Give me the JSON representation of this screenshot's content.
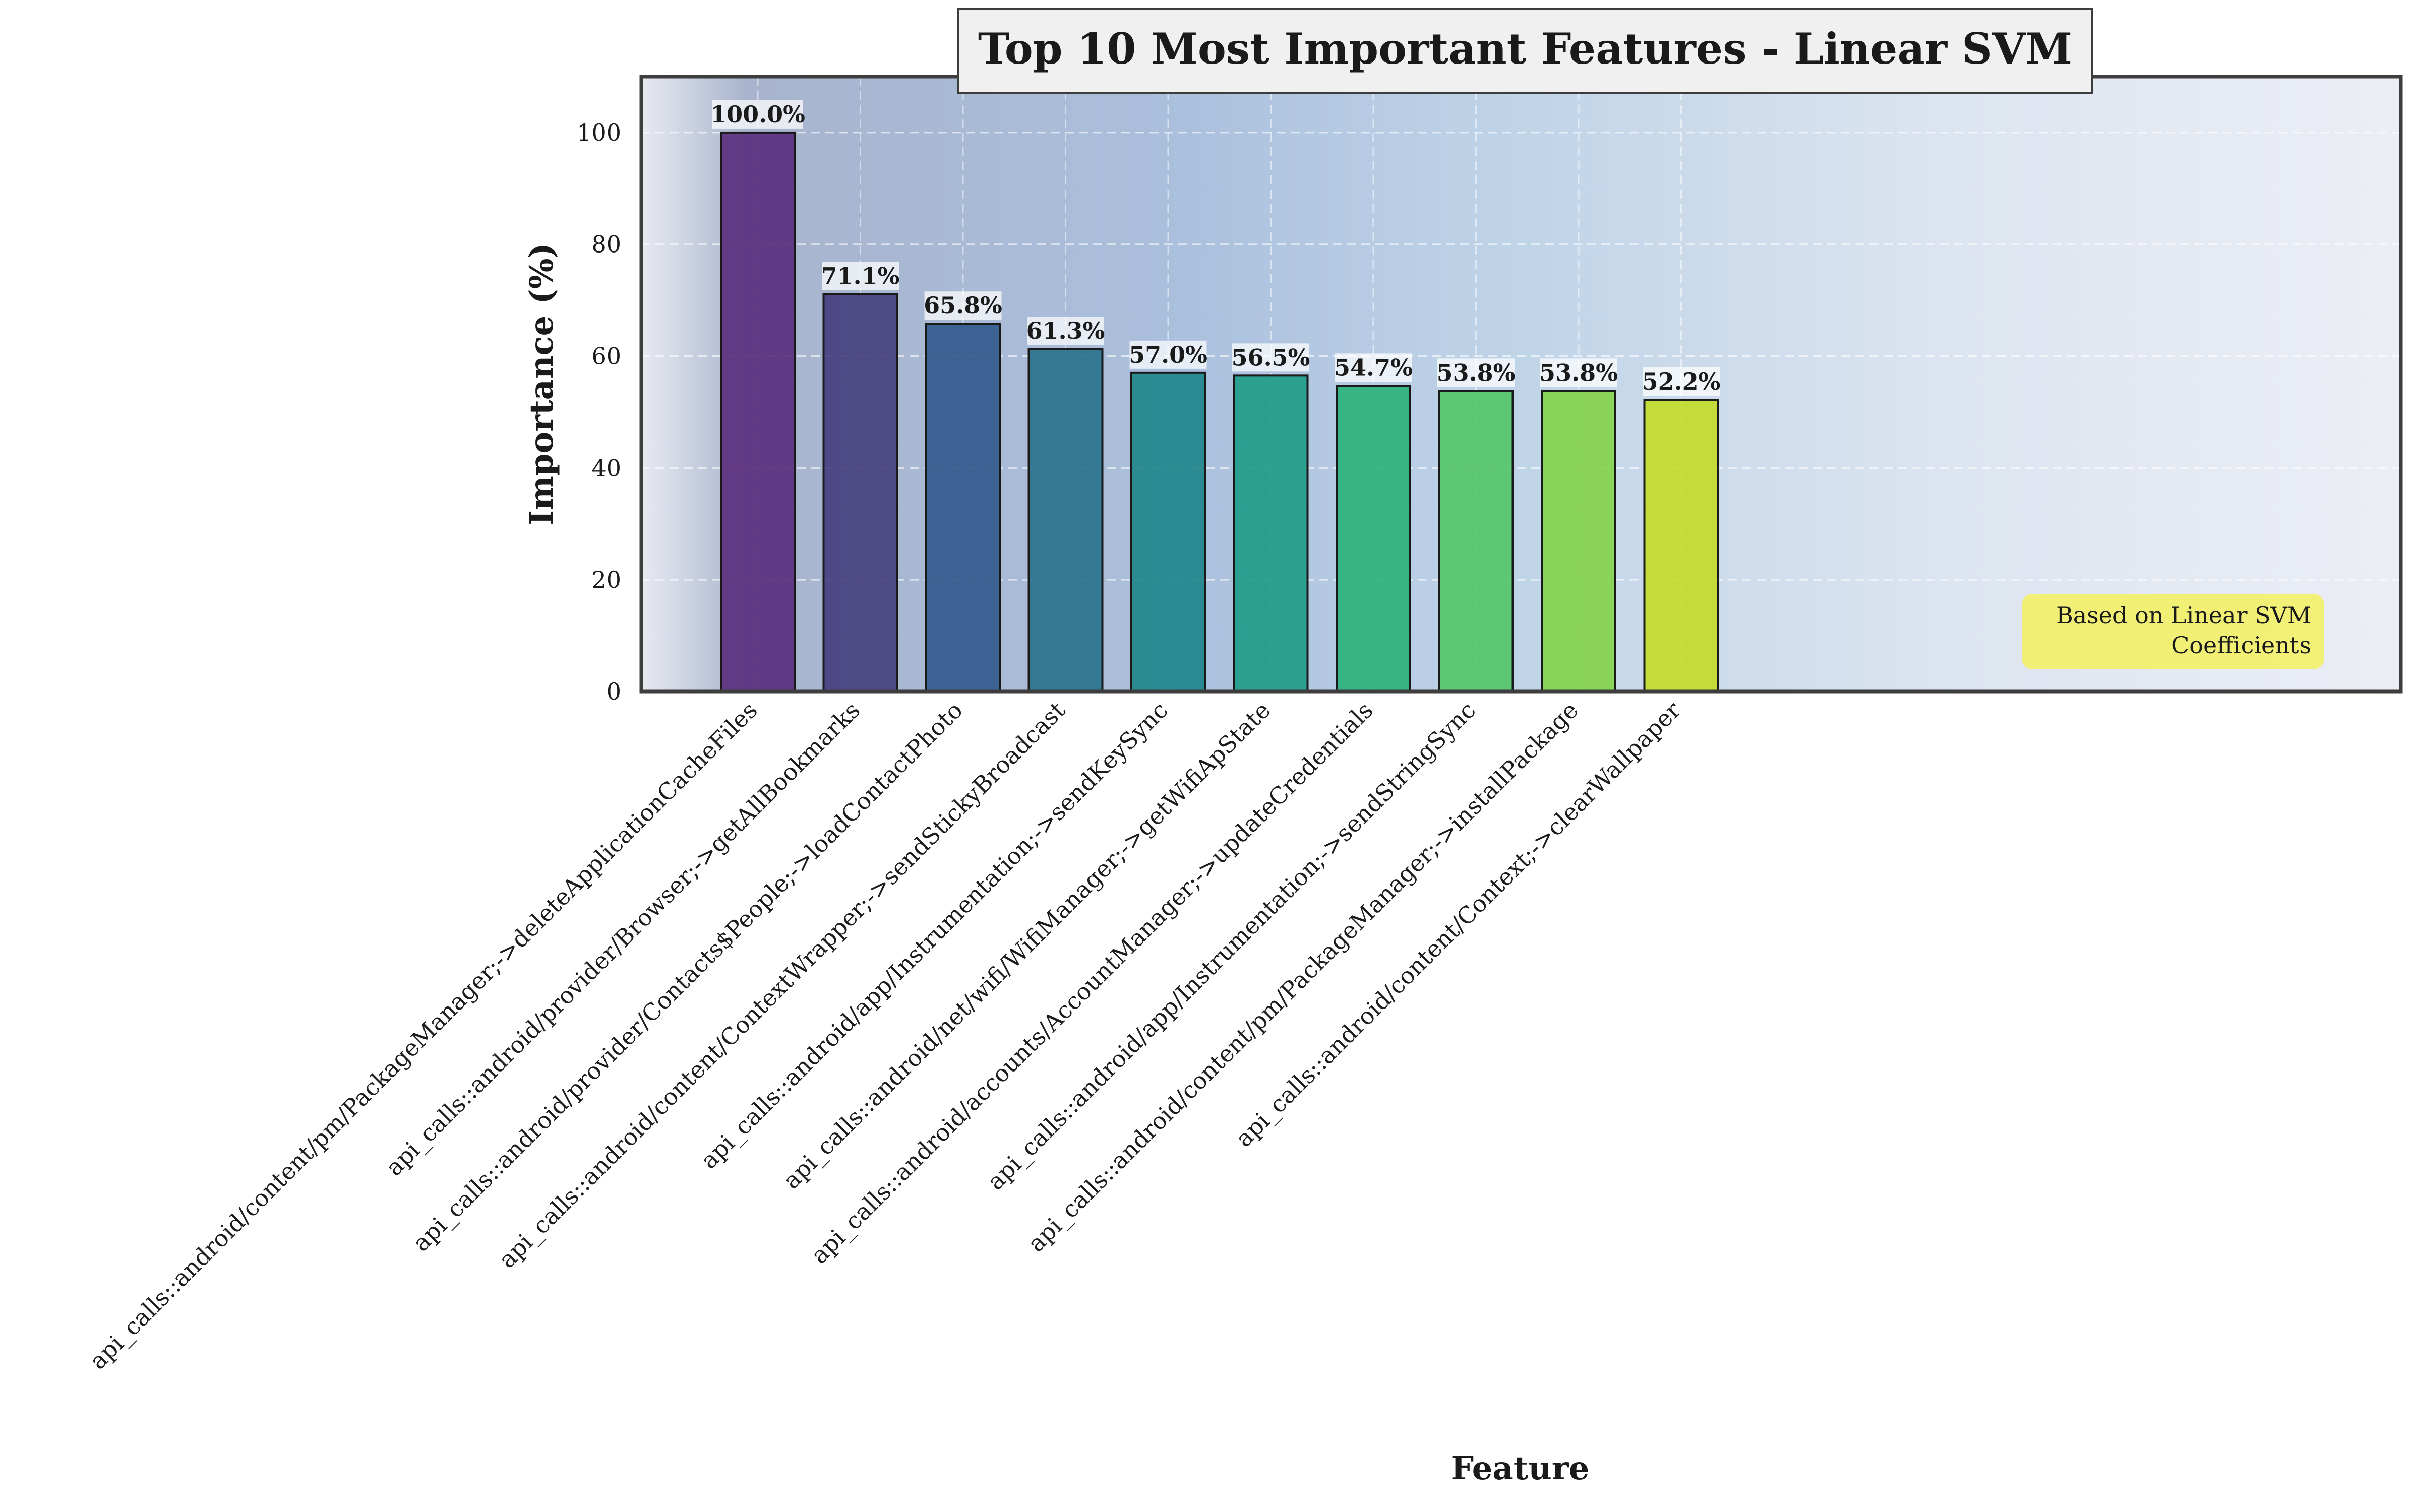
{
  "chart_data": {
    "type": "bar",
    "title": "Top 10 Most Important Features - Linear SVM",
    "xlabel": "Feature",
    "ylabel": "Importance (%)",
    "ylim": [
      0,
      110
    ],
    "yticks": [
      0,
      20,
      40,
      60,
      80,
      100
    ],
    "grid": true,
    "categories": [
      "api_calls::android/content/pm/PackageManager;->deleteApplicationCacheFiles",
      "api_calls::android/provider/Browser;->getAllBookmarks",
      "api_calls::android/provider/Contacts$People;->loadContactPhoto",
      "api_calls::android/content/ContextWrapper;->sendStickyBroadcast",
      "api_calls::android/app/Instrumentation;->sendKeySync",
      "api_calls::android/net/wifi/WifiManager;->getWifiApState",
      "api_calls::android/accounts/AccountManager;->updateCredentials",
      "api_calls::android/app/Instrumentation;->sendStringSync",
      "api_calls::android/content/pm/PackageManager;->installPackage",
      "api_calls::android/content/Context;->clearWallpaper"
    ],
    "values": [
      100.0,
      71.1,
      65.8,
      61.3,
      57.0,
      56.5,
      54.7,
      53.8,
      53.8,
      52.2
    ],
    "value_labels": [
      "100.0%",
      "71.1%",
      "65.8%",
      "61.3%",
      "57.0%",
      "56.5%",
      "54.7%",
      "53.8%",
      "53.8%",
      "52.2%"
    ],
    "bar_colors": [
      "#5b2f7e",
      "#47407f",
      "#345a8e",
      "#2a728e",
      "#21878b",
      "#1f9c8a",
      "#2cb27b",
      "#55c568",
      "#83d44b",
      "#c3dc2a"
    ],
    "annotation": [
      "Based on Linear SVM",
      "Coefficients"
    ],
    "annotation_color": "#f2f06a"
  }
}
